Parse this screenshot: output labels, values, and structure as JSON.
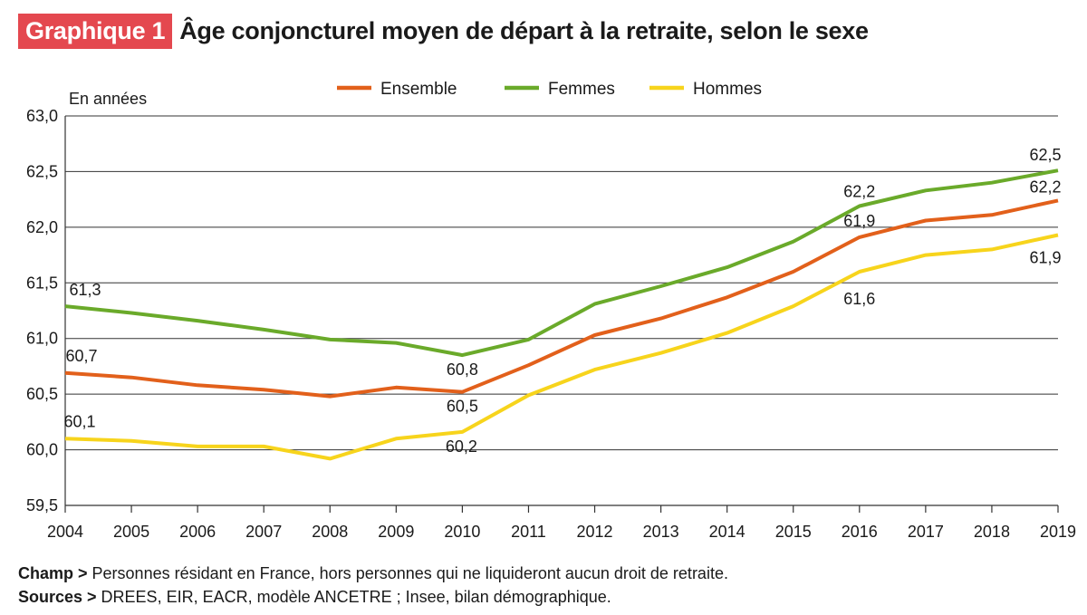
{
  "header": {
    "badge": "Graphique 1",
    "title": "Âge conjoncturel moyen de départ à la retraite, selon le sexe"
  },
  "colors": {
    "ensemble": "#e2601b",
    "femmes": "#6aaa2a",
    "hommes": "#f7d41c",
    "badge": "#e4484f"
  },
  "chart_data": {
    "type": "line",
    "title": "Âge conjoncturel moyen de départ à la retraite, selon le sexe",
    "ylabel": "En années",
    "xlabel": "",
    "ylim": [
      59.5,
      63.0
    ],
    "yticks": [
      59.5,
      60.0,
      60.5,
      61.0,
      61.5,
      62.0,
      62.5,
      63.0
    ],
    "ytick_labels": [
      "59,5",
      "60,0",
      "60,5",
      "61,0",
      "61,5",
      "62,0",
      "62,5",
      "63,0"
    ],
    "x": [
      "2004",
      "2005",
      "2006",
      "2007",
      "2008",
      "2009",
      "2010",
      "2011",
      "2012",
      "2013",
      "2014",
      "2015",
      "2016",
      "2017",
      "2018",
      "2019"
    ],
    "grid": "horizontal",
    "legend_position": "top",
    "series": [
      {
        "name": "Ensemble",
        "color": "#e2601b",
        "values": [
          60.69,
          60.65,
          60.58,
          60.54,
          60.48,
          60.56,
          60.52,
          60.76,
          61.03,
          61.18,
          61.37,
          61.6,
          61.91,
          62.06,
          62.11,
          62.24
        ]
      },
      {
        "name": "Femmes",
        "color": "#6aaa2a",
        "values": [
          61.29,
          61.23,
          61.16,
          61.08,
          60.99,
          60.96,
          60.85,
          60.99,
          61.31,
          61.47,
          61.64,
          61.87,
          62.19,
          62.33,
          62.4,
          62.51
        ]
      },
      {
        "name": "Hommes",
        "color": "#f7d41c",
        "values": [
          60.1,
          60.08,
          60.03,
          60.03,
          59.92,
          60.1,
          60.16,
          60.49,
          60.72,
          60.87,
          61.05,
          61.29,
          61.6,
          61.75,
          61.8,
          61.93
        ]
      }
    ],
    "annotations": [
      {
        "series": "Femmes",
        "x": "2004",
        "text": "61,3"
      },
      {
        "series": "Ensemble",
        "x": "2004",
        "text": "60,7"
      },
      {
        "series": "Hommes",
        "x": "2004",
        "text": "60,1"
      },
      {
        "series": "Femmes",
        "x": "2010",
        "text": "60,8"
      },
      {
        "series": "Ensemble",
        "x": "2010",
        "text": "60,5"
      },
      {
        "series": "Hommes",
        "x": "2010",
        "text": "60,2"
      },
      {
        "series": "Femmes",
        "x": "2016",
        "text": "62,2"
      },
      {
        "series": "Ensemble",
        "x": "2016",
        "text": "61,9"
      },
      {
        "series": "Hommes",
        "x": "2016",
        "text": "61,6"
      },
      {
        "series": "Femmes",
        "x": "2019",
        "text": "62,5"
      },
      {
        "series": "Ensemble",
        "x": "2019",
        "text": "62,2"
      },
      {
        "series": "Hommes",
        "x": "2019",
        "text": "61,9"
      }
    ]
  },
  "footer": {
    "champ_label": "Champ >",
    "champ_text": " Personnes résidant en France, hors personnes qui ne liquideront aucun droit de retraite.",
    "sources_label": "Sources >",
    "sources_text": " DREES, EIR, EACR, modèle ANCETRE ; Insee, bilan démographique."
  }
}
